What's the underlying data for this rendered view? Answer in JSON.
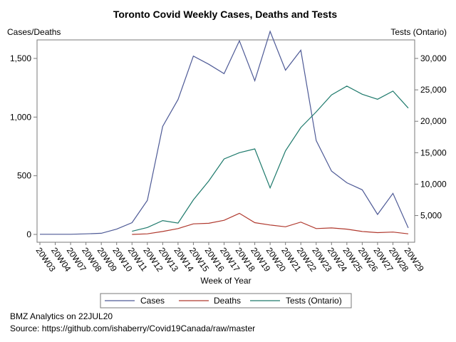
{
  "chart_data": {
    "type": "line",
    "title": "Toronto Covid Weekly Cases, Deaths and Tests",
    "xlabel": "Week of Year",
    "ylabel_left": "Cases/Deaths",
    "ylabel_right": "Tests (Ontario)",
    "categories": [
      "20W03",
      "20W04",
      "20W07",
      "20W08",
      "20W09",
      "20W10",
      "20W11",
      "20W12",
      "20W13",
      "20W14",
      "20W15",
      "20W16",
      "20W17",
      "20W18",
      "20W19",
      "20W20",
      "20W21",
      "20W22",
      "20W23",
      "20W24",
      "20W25",
      "20W26",
      "20W27",
      "20W28",
      "20W29"
    ],
    "ylim_left": [
      0,
      1500
    ],
    "yticks_left": [
      0,
      500,
      1000,
      1500
    ],
    "ytick_labels_left": [
      "0",
      "500",
      "1,000",
      "1,500"
    ],
    "ylim_right": [
      2000,
      30000
    ],
    "yticks_right": [
      5000,
      10000,
      15000,
      20000,
      25000,
      30000
    ],
    "ytick_labels_right": [
      "5,000",
      "10,000",
      "15,000",
      "20,000",
      "25,000",
      "30,000"
    ],
    "series": [
      {
        "name": "Cases",
        "axis": "left",
        "color": "#4e5a96",
        "values": [
          1,
          1,
          1,
          5,
          10,
          45,
          100,
          290,
          920,
          1150,
          1520,
          1450,
          1370,
          1650,
          1310,
          1730,
          1400,
          1570,
          800,
          540,
          440,
          380,
          170,
          350,
          55
        ]
      },
      {
        "name": "Deaths",
        "axis": "left",
        "color": "#b0392e",
        "values": [
          null,
          null,
          null,
          null,
          null,
          null,
          0,
          5,
          25,
          50,
          90,
          95,
          120,
          180,
          100,
          80,
          65,
          105,
          50,
          55,
          45,
          25,
          15,
          20,
          5
        ]
      },
      {
        "name": "Tests (Ontario)",
        "axis": "right",
        "color": "#1e7a6c",
        "values": [
          null,
          null,
          null,
          null,
          null,
          null,
          2500,
          3100,
          4200,
          3800,
          7500,
          10500,
          14000,
          15000,
          15600,
          9400,
          15300,
          19000,
          21500,
          24200,
          25600,
          24300,
          23500,
          24800,
          22100
        ]
      }
    ],
    "legend": "bottom",
    "grid": false
  },
  "footer": {
    "line1": "BMZ Analytics on 22JUL20",
    "line2": "Source: https://github.com/ishaberry/Covid19Canada/raw/master"
  }
}
